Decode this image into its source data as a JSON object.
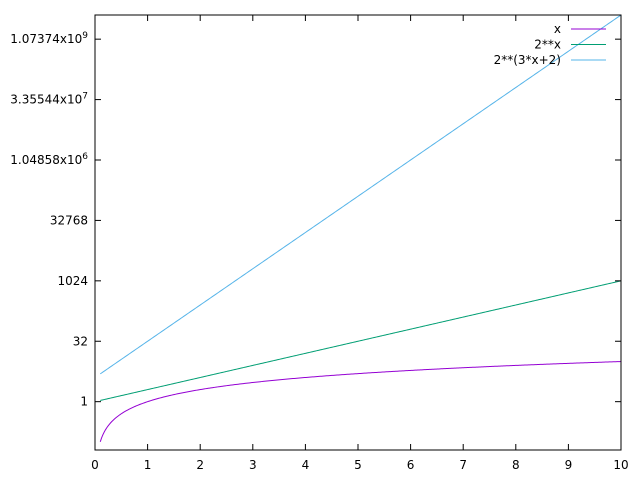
{
  "chart_data": {
    "type": "line",
    "title": "",
    "xlabel": "",
    "ylabel": "",
    "xlim": [
      0,
      10
    ],
    "ylim": [
      0.0625,
      4294967296
    ],
    "y_scale": "log2",
    "grid": false,
    "legend_position": "top-right",
    "x_ticks": [
      {
        "value": 0,
        "label": "0"
      },
      {
        "value": 1,
        "label": "1"
      },
      {
        "value": 2,
        "label": "2"
      },
      {
        "value": 3,
        "label": "3"
      },
      {
        "value": 4,
        "label": "4"
      },
      {
        "value": 5,
        "label": "5"
      },
      {
        "value": 6,
        "label": "6"
      },
      {
        "value": 7,
        "label": "7"
      },
      {
        "value": 8,
        "label": "8"
      },
      {
        "value": 9,
        "label": "9"
      },
      {
        "value": 10,
        "label": "10"
      }
    ],
    "y_ticks": [
      {
        "value": 1,
        "label": "1",
        "sup": ""
      },
      {
        "value": 32,
        "label": "32",
        "sup": ""
      },
      {
        "value": 1024,
        "label": "1024",
        "sup": ""
      },
      {
        "value": 32768,
        "label": "32768",
        "sup": ""
      },
      {
        "value": 1048576,
        "label": "1.04858x10",
        "sup": "6"
      },
      {
        "value": 33554432,
        "label": "3.35544x10",
        "sup": "7"
      },
      {
        "value": 1073741824,
        "label": "1.07374x10",
        "sup": "9"
      }
    ],
    "series": [
      {
        "name": "x",
        "expr": "x",
        "color": "#9400d3",
        "x_start": 0.1
      },
      {
        "name": "2**x",
        "expr": "2**x",
        "color": "#009e73",
        "x_start": 0.1
      },
      {
        "name": "2**(3*x+2)",
        "expr": "2**(3*x+2)",
        "color": "#56b4e9",
        "x_start": 0.1
      }
    ]
  }
}
